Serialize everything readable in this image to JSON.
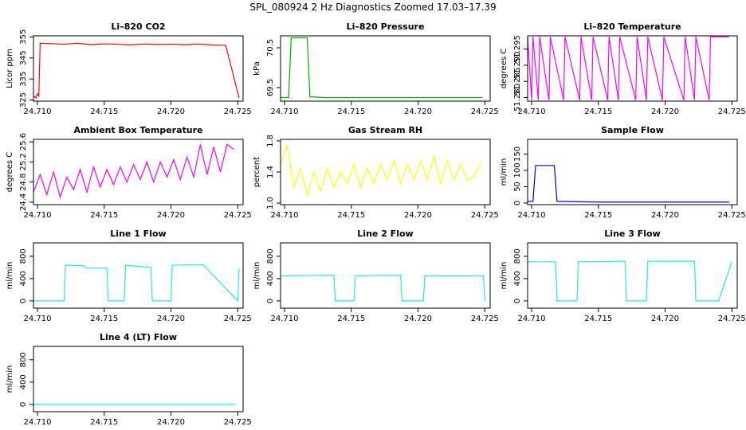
{
  "title": "SPL_080924  2 Hz Diagnostics Zoomed 17.03–17.39",
  "chart_data": [
    {
      "type": "line",
      "title": "Li–820 CO2",
      "ylabel": "Licor ppm",
      "color": "#ff0000",
      "x": [
        24.7097,
        24.7099,
        24.71,
        24.7101,
        24.7102,
        24.711,
        24.712,
        24.713,
        24.714,
        24.715,
        24.716,
        24.717,
        24.718,
        24.719,
        24.72,
        24.721,
        24.722,
        24.723,
        24.7241,
        24.7251
      ],
      "values": [
        327,
        326,
        328,
        327,
        352,
        351.8,
        351.5,
        352,
        351.3,
        351.7,
        351.5,
        351.2,
        351.6,
        351.4,
        351.5,
        351.3,
        351.6,
        351.2,
        351.0,
        326
      ],
      "xlim": [
        24.7097,
        24.7254
      ],
      "xticks": [
        {
          "value": 24.71,
          "label": "24.710"
        },
        {
          "value": 24.715,
          "label": "24.715"
        },
        {
          "value": 24.72,
          "label": "24.720"
        },
        {
          "value": 24.725,
          "label": "24.725"
        }
      ],
      "ylim": [
        324.5,
        355.5
      ],
      "yticks": [
        325,
        335,
        345,
        355
      ]
    },
    {
      "type": "line",
      "title": "Li–820 Pressure",
      "ylabel": "kPa",
      "color": "#00b000",
      "x": [
        24.7097,
        24.7103,
        24.7105,
        24.7117,
        24.7119,
        24.713,
        24.716,
        24.72,
        24.7248
      ],
      "values": [
        69.25,
        69.25,
        70.75,
        70.75,
        69.27,
        69.25,
        69.25,
        69.25,
        69.25
      ],
      "xlim": [
        24.7097,
        24.7254
      ],
      "xticks": [
        {
          "value": 24.71,
          "label": "24.710"
        },
        {
          "value": 24.715,
          "label": "24.715"
        },
        {
          "value": 24.72,
          "label": "24.720"
        },
        {
          "value": 24.725,
          "label": "24.725"
        }
      ],
      "ylim": [
        69.16,
        70.8
      ],
      "yticks": [
        69.5,
        70.5
      ]
    },
    {
      "type": "line",
      "title": "Li–820 Temperature",
      "ylabel": "degrees C",
      "color": "#ff00ff",
      "x": [
        24.7097,
        24.71,
        24.7101,
        24.7105,
        24.7106,
        24.7113,
        24.7114,
        24.7124,
        24.7125,
        24.7136,
        24.7137,
        24.7145,
        24.7146,
        24.7157,
        24.7158,
        24.7165,
        24.7166,
        24.7178,
        24.7179,
        24.7186,
        24.7187,
        24.7198,
        24.7199,
        24.7214,
        24.7215,
        24.7222,
        24.7223,
        24.7233,
        24.7234,
        24.7248
      ],
      "values": [
        51.2988,
        51.2792,
        51.2988,
        51.2792,
        51.2988,
        51.2792,
        51.2988,
        51.2792,
        51.2988,
        51.2792,
        51.2988,
        51.2792,
        51.2988,
        51.2792,
        51.2988,
        51.2792,
        51.2988,
        51.2792,
        51.2988,
        51.2792,
        51.2988,
        51.2792,
        51.2988,
        51.2792,
        51.2988,
        51.2792,
        51.2988,
        51.2792,
        51.2988,
        51.2988
      ],
      "xlim": [
        24.7097,
        24.7254
      ],
      "xticks": [
        {
          "value": 24.71,
          "label": "24.710"
        },
        {
          "value": 24.715,
          "label": "24.715"
        },
        {
          "value": 24.72,
          "label": "24.720"
        },
        {
          "value": 24.725,
          "label": "24.725"
        }
      ],
      "ylim": [
        51.2789,
        51.2991
      ],
      "yticks": [
        {
          "value": 51.28,
          "label": "51.280"
        },
        {
          "value": 51.285,
          "label": "51.285"
        },
        {
          "value": 51.29,
          "label": "51.290"
        },
        {
          "value": 51.295,
          "label": "51.295"
        }
      ]
    },
    {
      "type": "line",
      "title": "Ambient Box Temperature",
      "ylabel": "degrees C",
      "color": "#ff00ff",
      "x": [
        24.7097,
        24.7102,
        24.7107,
        24.7112,
        24.7117,
        24.7122,
        24.7127,
        24.7132,
        24.7137,
        24.7142,
        24.7147,
        24.7152,
        24.7157,
        24.7162,
        24.7167,
        24.7172,
        24.7177,
        24.7182,
        24.7187,
        24.7192,
        24.7197,
        24.7202,
        24.7207,
        24.7212,
        24.7217,
        24.7222,
        24.7227,
        24.7232,
        24.7237,
        24.7242,
        24.7247
      ],
      "values": [
        24.6,
        24.95,
        24.55,
        25.0,
        24.5,
        24.9,
        24.65,
        25.05,
        24.6,
        25.1,
        24.7,
        25.05,
        24.75,
        25.1,
        24.8,
        25.15,
        24.85,
        25.2,
        24.8,
        25.2,
        24.9,
        25.25,
        24.85,
        25.3,
        24.9,
        25.55,
        24.95,
        25.5,
        25.0,
        25.55,
        25.45
      ],
      "xlim": [
        24.7097,
        24.7254
      ],
      "xticks": [
        {
          "value": 24.71,
          "label": "24.710"
        },
        {
          "value": 24.715,
          "label": "24.715"
        },
        {
          "value": 24.72,
          "label": "24.720"
        },
        {
          "value": 24.725,
          "label": "24.725"
        }
      ],
      "ylim": [
        24.35,
        25.65
      ],
      "yticks": [
        24.4,
        24.8,
        25.2,
        25.6
      ]
    },
    {
      "type": "line",
      "title": "Gas Stream RH",
      "ylabel": "percent",
      "color": "#ffff00",
      "x": [
        24.7097,
        24.7102,
        24.7107,
        24.7112,
        24.7117,
        24.7122,
        24.7127,
        24.7132,
        24.7137,
        24.7142,
        24.7147,
        24.7152,
        24.7157,
        24.7162,
        24.7167,
        24.7172,
        24.7177,
        24.7182,
        24.7187,
        24.7192,
        24.7197,
        24.7202,
        24.7207,
        24.7212,
        24.7217,
        24.7222,
        24.7227,
        24.7232,
        24.7237,
        24.7242,
        24.7247
      ],
      "values": [
        1.5,
        1.75,
        1.2,
        1.45,
        1.1,
        1.4,
        1.15,
        1.45,
        1.2,
        1.4,
        1.25,
        1.5,
        1.2,
        1.45,
        1.25,
        1.5,
        1.3,
        1.55,
        1.25,
        1.5,
        1.3,
        1.55,
        1.3,
        1.6,
        1.25,
        1.55,
        1.3,
        1.5,
        1.3,
        1.35,
        1.5
      ],
      "xlim": [
        24.7097,
        24.7254
      ],
      "xticks": [
        {
          "value": 24.71,
          "label": "24.710"
        },
        {
          "value": 24.715,
          "label": "24.715"
        },
        {
          "value": 24.72,
          "label": "24.720"
        },
        {
          "value": 24.725,
          "label": "24.725"
        }
      ],
      "ylim": [
        0.98,
        1.82
      ],
      "yticks": [
        {
          "value": 1.0,
          "label": "1.0"
        },
        1.4,
        1.8
      ]
    },
    {
      "type": "line",
      "title": "Sample Flow",
      "ylabel": "ml/min",
      "color": "#0000dd",
      "x": [
        24.7097,
        24.7101,
        24.7103,
        24.7117,
        24.7119,
        24.715,
        24.72,
        24.7248
      ],
      "values": [
        5,
        5,
        115,
        115,
        5,
        3,
        3,
        3
      ],
      "xlim": [
        24.7097,
        24.7254
      ],
      "xticks": [
        {
          "value": 24.71,
          "label": "24.710"
        },
        {
          "value": 24.715,
          "label": "24.715"
        },
        {
          "value": 24.72,
          "label": "24.720"
        },
        {
          "value": 24.725,
          "label": "24.725"
        }
      ],
      "ylim": [
        -5,
        195
      ],
      "yticks": [
        0,
        50,
        100,
        150
      ]
    },
    {
      "type": "line",
      "title": "Line 1 Flow",
      "ylabel": "ml/min",
      "color": "#22e8f0",
      "x": [
        24.7097,
        24.712,
        24.7121,
        24.7135,
        24.7136,
        24.7152,
        24.7153,
        24.7165,
        24.7166,
        24.7185,
        24.7186,
        24.72,
        24.7201,
        24.7224,
        24.725,
        24.7251
      ],
      "values": [
        0,
        0,
        640,
        630,
        590,
        590,
        0,
        0,
        640,
        600,
        0,
        0,
        640,
        650,
        0,
        580
      ],
      "xlim": [
        24.7097,
        24.7254
      ],
      "xticks": [
        {
          "value": 24.71,
          "label": "24.710"
        },
        {
          "value": 24.715,
          "label": "24.715"
        },
        {
          "value": 24.72,
          "label": "24.720"
        },
        {
          "value": 24.725,
          "label": "24.725"
        }
      ],
      "ylim": [
        -130,
        1040
      ],
      "yticks": [
        0,
        400,
        800
      ]
    },
    {
      "type": "line",
      "title": "Line 2 Flow",
      "ylabel": "ml/min",
      "color": "#22e8f0",
      "x": [
        24.7097,
        24.7137,
        24.7138,
        24.7152,
        24.7153,
        24.7187,
        24.7188,
        24.7204,
        24.7205,
        24.7249,
        24.725
      ],
      "values": [
        450,
        460,
        0,
        0,
        450,
        460,
        0,
        0,
        450,
        450,
        0
      ],
      "xlim": [
        24.7097,
        24.7254
      ],
      "xticks": [
        {
          "value": 24.71,
          "label": "24.710"
        },
        {
          "value": 24.715,
          "label": "24.715"
        },
        {
          "value": 24.72,
          "label": "24.720"
        },
        {
          "value": 24.725,
          "label": "24.725"
        }
      ],
      "ylim": [
        -130,
        1040
      ],
      "yticks": [
        0,
        400,
        800
      ]
    },
    {
      "type": "line",
      "title": "Line 3 Flow",
      "ylabel": "ml/min",
      "color": "#22e8f0",
      "x": [
        24.7097,
        24.7118,
        24.7119,
        24.7134,
        24.7135,
        24.717,
        24.7171,
        24.7186,
        24.7187,
        24.7222,
        24.7223,
        24.724,
        24.725
      ],
      "values": [
        700,
        700,
        0,
        0,
        700,
        710,
        0,
        0,
        710,
        710,
        0,
        0,
        700
      ],
      "xlim": [
        24.7097,
        24.7254
      ],
      "xticks": [
        {
          "value": 24.71,
          "label": "24.710"
        },
        {
          "value": 24.715,
          "label": "24.715"
        },
        {
          "value": 24.72,
          "label": "24.720"
        },
        {
          "value": 24.725,
          "label": "24.725"
        }
      ],
      "ylim": [
        -130,
        1040
      ],
      "yticks": [
        0,
        400,
        800
      ]
    },
    {
      "type": "line",
      "title": "Line 4 (LT) Flow",
      "ylabel": "ml/min",
      "color": "#22e8f0",
      "x": [
        24.7097,
        24.7248
      ],
      "values": [
        0,
        0
      ],
      "xlim": [
        24.7097,
        24.7254
      ],
      "xticks": [
        {
          "value": 24.71,
          "label": "24.710"
        },
        {
          "value": 24.715,
          "label": "24.715"
        },
        {
          "value": 24.72,
          "label": "24.720"
        },
        {
          "value": 24.725,
          "label": "24.725"
        }
      ],
      "ylim": [
        -130,
        1040
      ],
      "yticks": [
        0,
        400,
        800
      ]
    }
  ]
}
